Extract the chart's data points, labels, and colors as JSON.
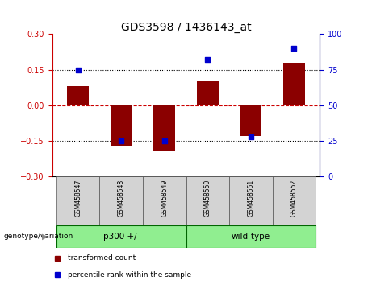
{
  "title": "GDS3598 / 1436143_at",
  "samples": [
    "GSM458547",
    "GSM458548",
    "GSM458549",
    "GSM458550",
    "GSM458551",
    "GSM458552"
  ],
  "transformed_count": [
    0.08,
    -0.17,
    -0.19,
    0.1,
    -0.13,
    0.18
  ],
  "percentile_rank": [
    75,
    25,
    25,
    82,
    28,
    90
  ],
  "groups": [
    {
      "label": "p300 +/-",
      "start": 0,
      "end": 2,
      "color": "#90EE90"
    },
    {
      "label": "wild-type",
      "start": 3,
      "end": 5,
      "color": "#90EE90"
    }
  ],
  "bar_color": "#8B0000",
  "dot_color": "#0000CD",
  "ylim_left": [
    -0.3,
    0.3
  ],
  "ylim_right": [
    0,
    100
  ],
  "yticks_left": [
    -0.3,
    -0.15,
    0,
    0.15,
    0.3
  ],
  "yticks_right": [
    0,
    25,
    50,
    75,
    100
  ],
  "hlines": [
    -0.15,
    0.0,
    0.15
  ],
  "hline_styles": [
    "dotted",
    "dashed",
    "dotted"
  ],
  "hline_colors": [
    "black",
    "#CC0000",
    "black"
  ],
  "left_tick_color": "#CC0000",
  "right_tick_color": "#0000CD",
  "bar_width": 0.5,
  "dot_size": 25,
  "sample_box_color": "#D3D3D3",
  "genotype_label": "genotype/variation",
  "legend_items": [
    {
      "label": "transformed count",
      "color": "#8B0000"
    },
    {
      "label": "percentile rank within the sample",
      "color": "#0000CD"
    }
  ]
}
